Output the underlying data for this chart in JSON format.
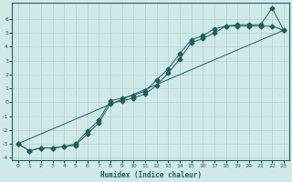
{
  "xlabel": "Humidex (Indice chaleur)",
  "bg_color": "#d0e8e8",
  "grid_color": "#b0d0d0",
  "line_color": "#1a6060",
  "xlim": [
    -0.5,
    23.5
  ],
  "ylim": [
    -4.2,
    7.2
  ],
  "yticks": [
    -4,
    -3,
    -2,
    -1,
    0,
    1,
    2,
    3,
    4,
    5,
    6
  ],
  "xticks": [
    0,
    1,
    2,
    3,
    4,
    5,
    6,
    7,
    8,
    9,
    10,
    11,
    12,
    13,
    14,
    15,
    16,
    17,
    18,
    19,
    20,
    21,
    22,
    23
  ],
  "line1_x": [
    0,
    1,
    2,
    3,
    4,
    5,
    6,
    7,
    8,
    9,
    10,
    11,
    12,
    13,
    14,
    15,
    16,
    17,
    18,
    19,
    20,
    21,
    22,
    23
  ],
  "line1_y": [
    -3.0,
    -3.5,
    -3.3,
    -3.3,
    -3.2,
    -3.1,
    -2.3,
    -1.5,
    -0.1,
    0.1,
    0.3,
    0.6,
    1.2,
    2.1,
    3.1,
    4.3,
    4.6,
    5.0,
    5.5,
    5.6,
    5.6,
    5.6,
    6.8,
    5.2
  ],
  "line2_x": [
    0,
    1,
    2,
    3,
    4,
    5,
    6,
    7,
    8,
    9,
    10,
    11,
    12,
    13,
    14,
    15,
    16,
    17,
    18,
    19,
    20,
    21,
    22,
    23
  ],
  "line2_y": [
    -3.0,
    -3.5,
    -3.3,
    -3.3,
    -3.2,
    -3.0,
    -2.1,
    -1.3,
    0.1,
    0.3,
    0.5,
    0.8,
    1.6,
    2.4,
    3.5,
    4.5,
    4.8,
    5.3,
    5.5,
    5.5,
    5.5,
    5.5,
    5.5,
    5.2
  ],
  "line3_x": [
    0,
    23
  ],
  "line3_y": [
    -3.0,
    5.2
  ],
  "markersize": 2.5,
  "xlabel_fontsize": 5.5,
  "tick_fontsize": 4.5
}
